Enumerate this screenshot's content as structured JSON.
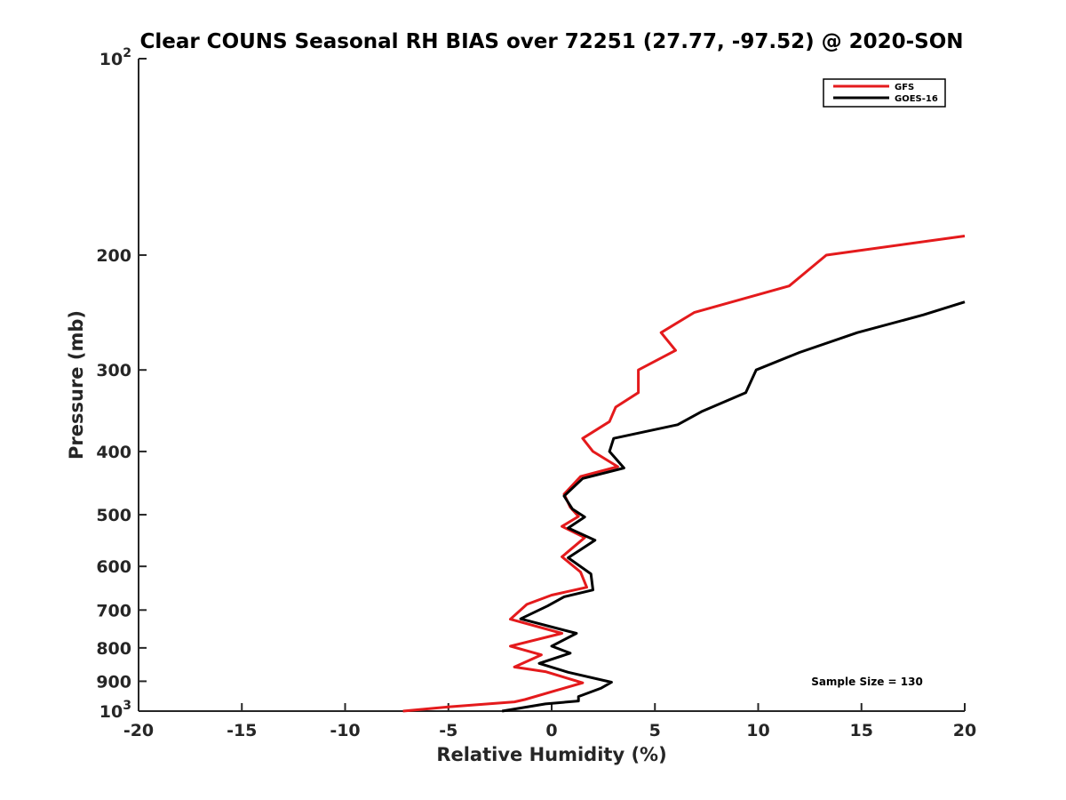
{
  "chart_data": {
    "type": "line",
    "title": "Clear COUNS Seasonal RH BIAS over 72251 (27.77, -97.52) @ 2020-SON",
    "xlabel": "Relative Humidity (%)",
    "ylabel": "Pressure (mb)",
    "xlim": [
      -20,
      20
    ],
    "ylim": [
      100,
      1000
    ],
    "yscale": "log",
    "y_reversed": true,
    "grid": false,
    "legend_position": "top-right",
    "x_ticks": [
      -20,
      -15,
      -10,
      -5,
      0,
      5,
      10,
      15,
      20
    ],
    "x_tick_labels": [
      "-20",
      "-15",
      "-10",
      "-5",
      "0",
      "5",
      "10",
      "15",
      "20"
    ],
    "y_ticks": [
      100,
      200,
      300,
      400,
      500,
      600,
      700,
      800,
      900,
      1000
    ],
    "y_tick_labels": [
      {
        "base": "10",
        "exp": "2"
      },
      {
        "base": "200",
        "exp": ""
      },
      {
        "base": "300",
        "exp": ""
      },
      {
        "base": "400",
        "exp": ""
      },
      {
        "base": "500",
        "exp": ""
      },
      {
        "base": "600",
        "exp": ""
      },
      {
        "base": "700",
        "exp": ""
      },
      {
        "base": "800",
        "exp": ""
      },
      {
        "base": "900",
        "exp": ""
      },
      {
        "base": "10",
        "exp": "3"
      }
    ],
    "annotation": "Sample Size = 130",
    "series": [
      {
        "name": "GFS",
        "color": "#e41a1c",
        "points": [
          [
            20,
            187
          ],
          [
            13.3,
            200
          ],
          [
            11.5,
            223
          ],
          [
            6.9,
            245
          ],
          [
            5.3,
            263
          ],
          [
            6.0,
            280
          ],
          [
            4.2,
            300
          ],
          [
            4.2,
            325
          ],
          [
            3.1,
            342
          ],
          [
            2.8,
            360
          ],
          [
            1.5,
            382
          ],
          [
            2.0,
            400
          ],
          [
            3.2,
            422
          ],
          [
            1.4,
            437
          ],
          [
            0.6,
            465
          ],
          [
            0.9,
            487
          ],
          [
            1.3,
            503
          ],
          [
            0.5,
            521
          ],
          [
            1.6,
            542
          ],
          [
            0.5,
            580
          ],
          [
            1.4,
            612
          ],
          [
            1.7,
            646
          ],
          [
            0.0,
            664
          ],
          [
            -1.2,
            686
          ],
          [
            -2.0,
            723
          ],
          [
            0.5,
            760
          ],
          [
            -2.0,
            795
          ],
          [
            -0.5,
            820
          ],
          [
            -1.8,
            856
          ],
          [
            -0.3,
            870
          ],
          [
            1.5,
            905
          ],
          [
            0.3,
            928
          ],
          [
            -1.3,
            960
          ],
          [
            -1.8,
            968
          ],
          [
            -5.0,
            985
          ],
          [
            -7.2,
            1000
          ]
        ]
      },
      {
        "name": "GOES-16",
        "color": "#000000",
        "points": [
          [
            20,
            236
          ],
          [
            18.0,
            247
          ],
          [
            14.8,
            263
          ],
          [
            12.0,
            282
          ],
          [
            9.9,
            300
          ],
          [
            9.4,
            325
          ],
          [
            7.3,
            347
          ],
          [
            6.1,
            364
          ],
          [
            3.0,
            382
          ],
          [
            2.8,
            400
          ],
          [
            3.5,
            424
          ],
          [
            1.5,
            440
          ],
          [
            0.6,
            468
          ],
          [
            1.0,
            490
          ],
          [
            1.6,
            504
          ],
          [
            0.8,
            524
          ],
          [
            2.1,
            547
          ],
          [
            0.8,
            582
          ],
          [
            1.9,
            616
          ],
          [
            2.0,
            652
          ],
          [
            0.6,
            668
          ],
          [
            -0.2,
            690
          ],
          [
            -1.5,
            722
          ],
          [
            1.2,
            760
          ],
          [
            0.0,
            795
          ],
          [
            0.9,
            815
          ],
          [
            -0.6,
            845
          ],
          [
            0.8,
            872
          ],
          [
            2.9,
            903
          ],
          [
            2.4,
            922
          ],
          [
            1.3,
            950
          ],
          [
            1.3,
            965
          ],
          [
            -0.3,
            975
          ],
          [
            -2.4,
            1000
          ]
        ]
      }
    ]
  }
}
